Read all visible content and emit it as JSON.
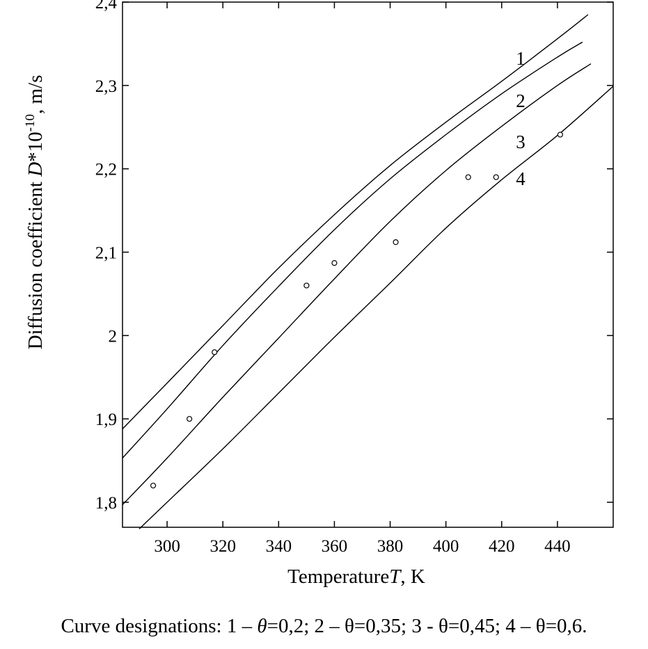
{
  "chart_data": {
    "type": "line",
    "xlabel": "TemperatureT, K",
    "ylabel": "Diffusion coefficient D*10-10, m/s",
    "xlim": [
      284,
      460
    ],
    "ylim": [
      1.77,
      2.4
    ],
    "x_ticks": [
      300,
      320,
      340,
      360,
      380,
      400,
      420,
      440
    ],
    "y_ticks": [
      1.8,
      1.9,
      2.0,
      2.1,
      2.2,
      2.3,
      2.4
    ],
    "x_tick_labels": [
      "300",
      "320",
      "340",
      "360",
      "380",
      "400",
      "420",
      "440"
    ],
    "y_tick_labels": [
      "1,8",
      "1,9",
      "2",
      "2,1",
      "2,2",
      "2,3",
      "2,4"
    ],
    "grid": false,
    "series": [
      {
        "name": "1",
        "x": [
          284,
          300,
          320,
          340,
          360,
          380,
          400,
          420,
          440,
          451
        ],
        "y": [
          1.888,
          1.943,
          2.012,
          2.081,
          2.145,
          2.204,
          2.256,
          2.305,
          2.356,
          2.385
        ]
      },
      {
        "name": "2",
        "x": [
          284,
          300,
          320,
          340,
          360,
          380,
          400,
          420,
          440,
          449
        ],
        "y": [
          1.853,
          1.912,
          1.988,
          2.059,
          2.127,
          2.188,
          2.241,
          2.29,
          2.334,
          2.352
        ]
      },
      {
        "name": "3",
        "x": [
          284,
          300,
          320,
          340,
          360,
          380,
          400,
          420,
          440,
          452
        ],
        "y": [
          1.797,
          1.853,
          1.926,
          1.997,
          2.068,
          2.137,
          2.198,
          2.251,
          2.3,
          2.326
        ]
      },
      {
        "name": "4",
        "x": [
          290,
          300,
          320,
          340,
          360,
          380,
          400,
          420,
          440,
          460
        ],
        "y": [
          1.768,
          1.8,
          1.864,
          1.931,
          1.998,
          2.063,
          2.129,
          2.187,
          2.24,
          2.299
        ]
      }
    ],
    "points": {
      "x": [
        295,
        308,
        317,
        350,
        360,
        382,
        408,
        418,
        441
      ],
      "y": [
        1.82,
        1.9,
        1.98,
        2.06,
        2.087,
        2.112,
        2.19,
        2.19,
        2.241
      ]
    },
    "curve_labels": [
      "1",
      "2",
      "3",
      "4"
    ],
    "caption": "Curve designations: 1 – θ=0,2; 2 – θ=0,35; 3 - θ=0,45; 4 – θ=0,6."
  }
}
